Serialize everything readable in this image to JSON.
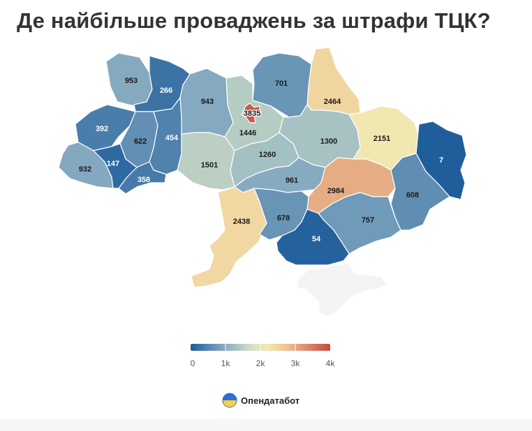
{
  "title": "Де найбільше проваджень за штрафи ТЦК?",
  "brand": "Опендатабот",
  "legend": {
    "ticks": [
      "0",
      "1k",
      "2k",
      "3k",
      "4k"
    ],
    "min": 0,
    "max": 4000,
    "colors": [
      "#1f5d9b",
      "#8aaec2",
      "#d8e4c4",
      "#f5e7ad",
      "#ecbf92",
      "#c44a3d"
    ]
  },
  "regions": [
    {
      "id": "volyn",
      "value": 953,
      "label": "953"
    },
    {
      "id": "rivne",
      "value": 266,
      "label": "266"
    },
    {
      "id": "zhytomyr",
      "value": 943,
      "label": "943"
    },
    {
      "id": "kyiv-oblast",
      "value": 1446,
      "label": "1446"
    },
    {
      "id": "kyiv-city",
      "value": 3835,
      "label": "3835"
    },
    {
      "id": "chernihiv",
      "value": 701,
      "label": "701"
    },
    {
      "id": "sumy",
      "value": 2464,
      "label": "2464"
    },
    {
      "id": "lviv",
      "value": 392,
      "label": "392"
    },
    {
      "id": "ternopil",
      "value": 622,
      "label": "622"
    },
    {
      "id": "khmelnytskyi",
      "value": 454,
      "label": "454"
    },
    {
      "id": "zakarpattia",
      "value": 932,
      "label": "932"
    },
    {
      "id": "ivano-frankivsk",
      "value": 147,
      "label": "147"
    },
    {
      "id": "chernivtsi",
      "value": 358,
      "label": "358"
    },
    {
      "id": "vinnytsia",
      "value": 1501,
      "label": "1501"
    },
    {
      "id": "cherkasy",
      "value": 1260,
      "label": "1260"
    },
    {
      "id": "poltava",
      "value": 1300,
      "label": "1300"
    },
    {
      "id": "kharkiv",
      "value": 2151,
      "label": "2151"
    },
    {
      "id": "luhansk",
      "value": 7,
      "label": "7"
    },
    {
      "id": "kirovohrad",
      "value": 961,
      "label": "961"
    },
    {
      "id": "dnipropetrovsk",
      "value": 2984,
      "label": "2984"
    },
    {
      "id": "donetsk",
      "value": 608,
      "label": "608"
    },
    {
      "id": "odesa",
      "value": 2438,
      "label": "2438"
    },
    {
      "id": "mykolaiv",
      "value": 678,
      "label": "678"
    },
    {
      "id": "zaporizhzhia",
      "value": 757,
      "label": "757"
    },
    {
      "id": "kherson",
      "value": 54,
      "label": "54"
    },
    {
      "id": "crimea",
      "value": null,
      "label": ""
    }
  ]
}
